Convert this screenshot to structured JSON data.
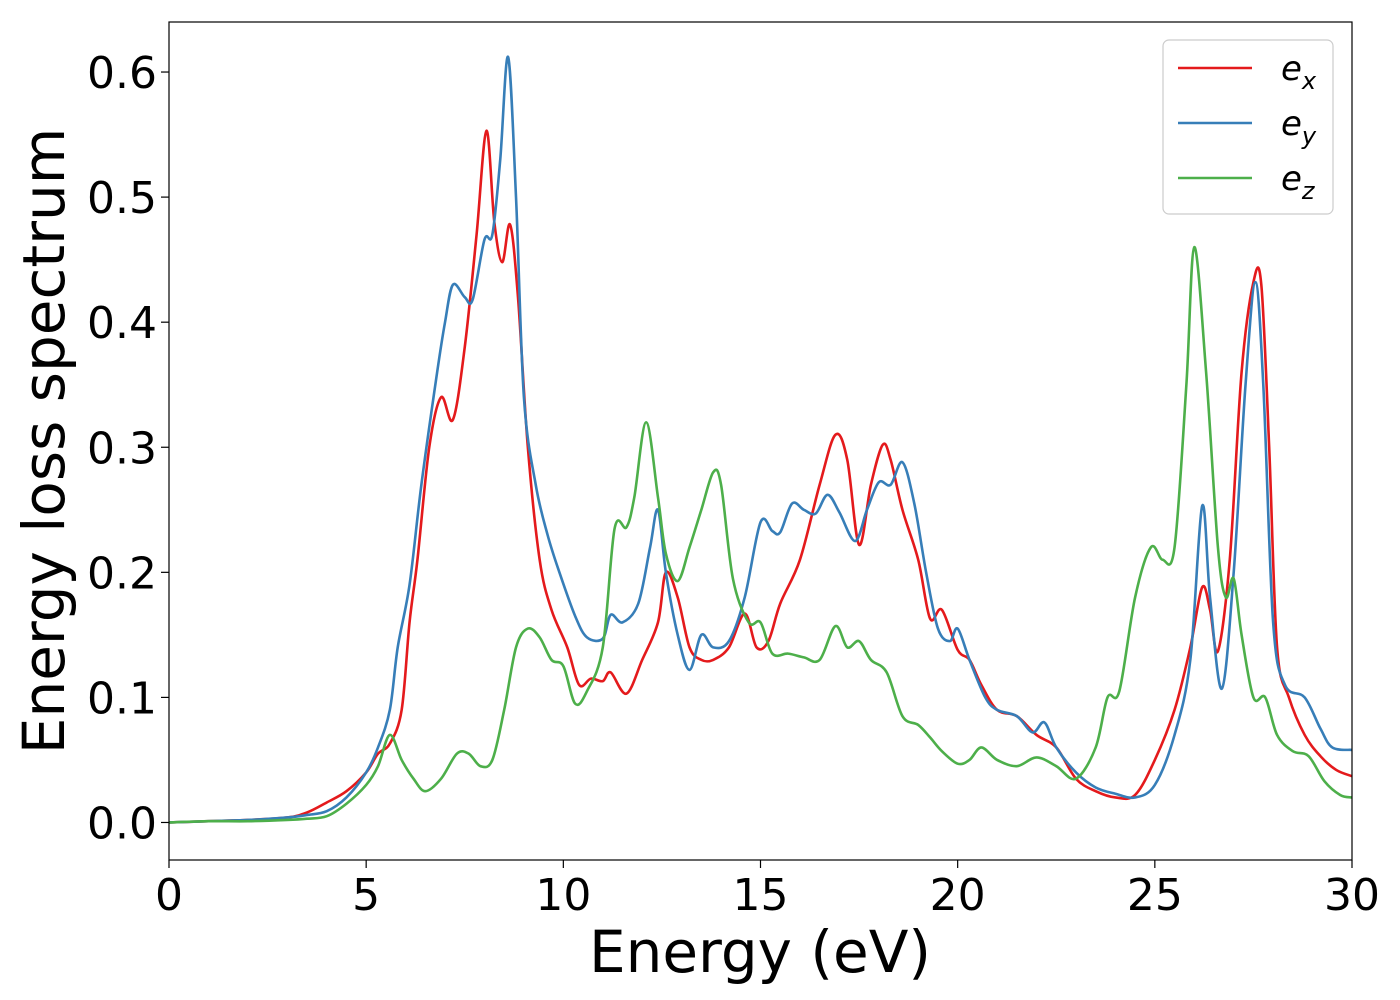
{
  "chart_data": {
    "type": "line",
    "title": "",
    "xlabel": "Energy (eV)",
    "ylabel": "Energy loss spectrum",
    "xlim": [
      0,
      30
    ],
    "ylim": [
      -0.03,
      0.64
    ],
    "xticks": [
      0,
      5,
      10,
      15,
      20,
      25,
      30
    ],
    "xtick_labels": [
      "0",
      "5",
      "10",
      "15",
      "20",
      "25",
      "30"
    ],
    "yticks": [
      0.0,
      0.1,
      0.2,
      0.3,
      0.4,
      0.5,
      0.6
    ],
    "ytick_labels": [
      "0.0",
      "0.1",
      "0.2",
      "0.3",
      "0.4",
      "0.5",
      "0.6"
    ],
    "grid": false,
    "legend_position": "top-right",
    "series": [
      {
        "name": "e",
        "subscript": "x",
        "color": "#e41a1c",
        "points": [
          [
            0,
            0
          ],
          [
            1,
            0.001
          ],
          [
            2,
            0.002
          ],
          [
            3,
            0.004
          ],
          [
            3.5,
            0.008
          ],
          [
            4,
            0.016
          ],
          [
            4.5,
            0.025
          ],
          [
            5,
            0.04
          ],
          [
            5.3,
            0.055
          ],
          [
            5.6,
            0.063
          ],
          [
            5.9,
            0.09
          ],
          [
            6.1,
            0.16
          ],
          [
            6.3,
            0.21
          ],
          [
            6.6,
            0.3
          ],
          [
            6.9,
            0.34
          ],
          [
            7.2,
            0.322
          ],
          [
            7.5,
            0.38
          ],
          [
            7.8,
            0.47
          ],
          [
            8.05,
            0.553
          ],
          [
            8.25,
            0.48
          ],
          [
            8.45,
            0.448
          ],
          [
            8.65,
            0.478
          ],
          [
            8.85,
            0.42
          ],
          [
            9.1,
            0.3
          ],
          [
            9.4,
            0.21
          ],
          [
            9.7,
            0.17
          ],
          [
            10.1,
            0.14
          ],
          [
            10.4,
            0.11
          ],
          [
            10.7,
            0.115
          ],
          [
            11.0,
            0.113
          ],
          [
            11.2,
            0.12
          ],
          [
            11.6,
            0.103
          ],
          [
            12.0,
            0.13
          ],
          [
            12.4,
            0.16
          ],
          [
            12.6,
            0.2
          ],
          [
            12.9,
            0.18
          ],
          [
            13.2,
            0.14
          ],
          [
            13.5,
            0.13
          ],
          [
            13.8,
            0.13
          ],
          [
            14.2,
            0.14
          ],
          [
            14.6,
            0.167
          ],
          [
            14.9,
            0.14
          ],
          [
            15.2,
            0.145
          ],
          [
            15.5,
            0.175
          ],
          [
            16.0,
            0.21
          ],
          [
            16.5,
            0.27
          ],
          [
            16.9,
            0.31
          ],
          [
            17.2,
            0.29
          ],
          [
            17.5,
            0.222
          ],
          [
            17.8,
            0.27
          ],
          [
            18.1,
            0.302
          ],
          [
            18.3,
            0.29
          ],
          [
            18.6,
            0.25
          ],
          [
            19.0,
            0.21
          ],
          [
            19.3,
            0.163
          ],
          [
            19.6,
            0.17
          ],
          [
            20.0,
            0.138
          ],
          [
            20.3,
            0.13
          ],
          [
            20.6,
            0.11
          ],
          [
            21.0,
            0.09
          ],
          [
            21.5,
            0.085
          ],
          [
            22.0,
            0.07
          ],
          [
            22.5,
            0.06
          ],
          [
            23.0,
            0.035
          ],
          [
            23.5,
            0.025
          ],
          [
            24.0,
            0.02
          ],
          [
            24.5,
            0.022
          ],
          [
            25.0,
            0.05
          ],
          [
            25.5,
            0.09
          ],
          [
            25.9,
            0.14
          ],
          [
            26.2,
            0.188
          ],
          [
            26.4,
            0.17
          ],
          [
            26.6,
            0.137
          ],
          [
            26.9,
            0.21
          ],
          [
            27.2,
            0.36
          ],
          [
            27.5,
            0.432
          ],
          [
            27.7,
            0.43
          ],
          [
            27.9,
            0.3
          ],
          [
            28.1,
            0.14
          ],
          [
            28.4,
            0.1
          ],
          [
            28.8,
            0.07
          ],
          [
            29.2,
            0.053
          ],
          [
            29.6,
            0.042
          ],
          [
            30,
            0.037
          ]
        ]
      },
      {
        "name": "e",
        "subscript": "y",
        "color": "#377eb8",
        "points": [
          [
            0,
            0
          ],
          [
            1,
            0.001
          ],
          [
            2,
            0.002
          ],
          [
            3,
            0.004
          ],
          [
            3.5,
            0.006
          ],
          [
            4,
            0.009
          ],
          [
            4.5,
            0.02
          ],
          [
            5,
            0.04
          ],
          [
            5.3,
            0.06
          ],
          [
            5.6,
            0.09
          ],
          [
            5.8,
            0.14
          ],
          [
            6.1,
            0.19
          ],
          [
            6.4,
            0.27
          ],
          [
            6.8,
            0.36
          ],
          [
            7.0,
            0.4
          ],
          [
            7.2,
            0.43
          ],
          [
            7.5,
            0.42
          ],
          [
            7.7,
            0.418
          ],
          [
            8.0,
            0.466
          ],
          [
            8.2,
            0.47
          ],
          [
            8.4,
            0.53
          ],
          [
            8.6,
            0.612
          ],
          [
            8.8,
            0.5
          ],
          [
            9.0,
            0.34
          ],
          [
            9.3,
            0.27
          ],
          [
            9.6,
            0.23
          ],
          [
            9.9,
            0.2
          ],
          [
            10.3,
            0.165
          ],
          [
            10.6,
            0.148
          ],
          [
            11.0,
            0.147
          ],
          [
            11.2,
            0.166
          ],
          [
            11.5,
            0.16
          ],
          [
            11.9,
            0.175
          ],
          [
            12.2,
            0.22
          ],
          [
            12.4,
            0.25
          ],
          [
            12.6,
            0.2
          ],
          [
            12.9,
            0.15
          ],
          [
            13.2,
            0.122
          ],
          [
            13.5,
            0.15
          ],
          [
            13.8,
            0.14
          ],
          [
            14.2,
            0.145
          ],
          [
            14.6,
            0.18
          ],
          [
            15.0,
            0.24
          ],
          [
            15.3,
            0.233
          ],
          [
            15.5,
            0.232
          ],
          [
            15.8,
            0.255
          ],
          [
            16.1,
            0.25
          ],
          [
            16.4,
            0.247
          ],
          [
            16.7,
            0.262
          ],
          [
            17.0,
            0.248
          ],
          [
            17.4,
            0.225
          ],
          [
            17.7,
            0.25
          ],
          [
            18.0,
            0.272
          ],
          [
            18.3,
            0.27
          ],
          [
            18.6,
            0.288
          ],
          [
            18.9,
            0.255
          ],
          [
            19.2,
            0.2
          ],
          [
            19.5,
            0.155
          ],
          [
            19.8,
            0.145
          ],
          [
            20.0,
            0.155
          ],
          [
            20.3,
            0.13
          ],
          [
            20.7,
            0.1
          ],
          [
            21.0,
            0.09
          ],
          [
            21.5,
            0.085
          ],
          [
            21.9,
            0.072
          ],
          [
            22.2,
            0.08
          ],
          [
            22.5,
            0.06
          ],
          [
            23.0,
            0.04
          ],
          [
            23.5,
            0.028
          ],
          [
            24.0,
            0.023
          ],
          [
            24.5,
            0.02
          ],
          [
            25.0,
            0.03
          ],
          [
            25.5,
            0.07
          ],
          [
            25.9,
            0.13
          ],
          [
            26.2,
            0.253
          ],
          [
            26.4,
            0.18
          ],
          [
            26.7,
            0.107
          ],
          [
            27.0,
            0.2
          ],
          [
            27.3,
            0.35
          ],
          [
            27.55,
            0.432
          ],
          [
            27.75,
            0.35
          ],
          [
            28.0,
            0.16
          ],
          [
            28.3,
            0.11
          ],
          [
            28.8,
            0.1
          ],
          [
            29.2,
            0.075
          ],
          [
            29.5,
            0.06
          ],
          [
            30,
            0.058
          ]
        ]
      },
      {
        "name": "e",
        "subscript": "z",
        "color": "#4daf4a",
        "points": [
          [
            0,
            0
          ],
          [
            1,
            0.001
          ],
          [
            2,
            0.001
          ],
          [
            3,
            0.002
          ],
          [
            3.5,
            0.003
          ],
          [
            4,
            0.005
          ],
          [
            4.5,
            0.015
          ],
          [
            5,
            0.03
          ],
          [
            5.3,
            0.045
          ],
          [
            5.6,
            0.07
          ],
          [
            5.9,
            0.05
          ],
          [
            6.2,
            0.035
          ],
          [
            6.5,
            0.025
          ],
          [
            6.9,
            0.035
          ],
          [
            7.3,
            0.055
          ],
          [
            7.6,
            0.055
          ],
          [
            7.9,
            0.045
          ],
          [
            8.2,
            0.05
          ],
          [
            8.5,
            0.09
          ],
          [
            8.8,
            0.14
          ],
          [
            9.1,
            0.155
          ],
          [
            9.4,
            0.148
          ],
          [
            9.7,
            0.13
          ],
          [
            10.0,
            0.125
          ],
          [
            10.3,
            0.095
          ],
          [
            10.6,
            0.105
          ],
          [
            11.0,
            0.14
          ],
          [
            11.3,
            0.235
          ],
          [
            11.6,
            0.236
          ],
          [
            11.8,
            0.26
          ],
          [
            12.1,
            0.32
          ],
          [
            12.4,
            0.26
          ],
          [
            12.6,
            0.215
          ],
          [
            12.9,
            0.193
          ],
          [
            13.2,
            0.22
          ],
          [
            13.5,
            0.25
          ],
          [
            13.8,
            0.28
          ],
          [
            14.0,
            0.27
          ],
          [
            14.3,
            0.195
          ],
          [
            14.7,
            0.16
          ],
          [
            15.0,
            0.16
          ],
          [
            15.3,
            0.135
          ],
          [
            15.7,
            0.135
          ],
          [
            16.1,
            0.132
          ],
          [
            16.5,
            0.13
          ],
          [
            16.9,
            0.157
          ],
          [
            17.2,
            0.14
          ],
          [
            17.5,
            0.145
          ],
          [
            17.8,
            0.13
          ],
          [
            18.2,
            0.12
          ],
          [
            18.6,
            0.085
          ],
          [
            19.0,
            0.078
          ],
          [
            19.3,
            0.068
          ],
          [
            19.6,
            0.057
          ],
          [
            20.0,
            0.047
          ],
          [
            20.3,
            0.05
          ],
          [
            20.6,
            0.06
          ],
          [
            21.0,
            0.05
          ],
          [
            21.5,
            0.045
          ],
          [
            22.0,
            0.052
          ],
          [
            22.5,
            0.045
          ],
          [
            23.0,
            0.035
          ],
          [
            23.5,
            0.06
          ],
          [
            23.8,
            0.1
          ],
          [
            24.1,
            0.105
          ],
          [
            24.5,
            0.18
          ],
          [
            24.9,
            0.22
          ],
          [
            25.2,
            0.21
          ],
          [
            25.5,
            0.22
          ],
          [
            25.8,
            0.35
          ],
          [
            26.0,
            0.46
          ],
          [
            26.3,
            0.36
          ],
          [
            26.6,
            0.22
          ],
          [
            26.8,
            0.18
          ],
          [
            27.0,
            0.195
          ],
          [
            27.2,
            0.15
          ],
          [
            27.5,
            0.1
          ],
          [
            27.8,
            0.1
          ],
          [
            28.1,
            0.07
          ],
          [
            28.5,
            0.057
          ],
          [
            28.9,
            0.053
          ],
          [
            29.3,
            0.033
          ],
          [
            29.7,
            0.022
          ],
          [
            30,
            0.02
          ]
        ]
      }
    ]
  }
}
